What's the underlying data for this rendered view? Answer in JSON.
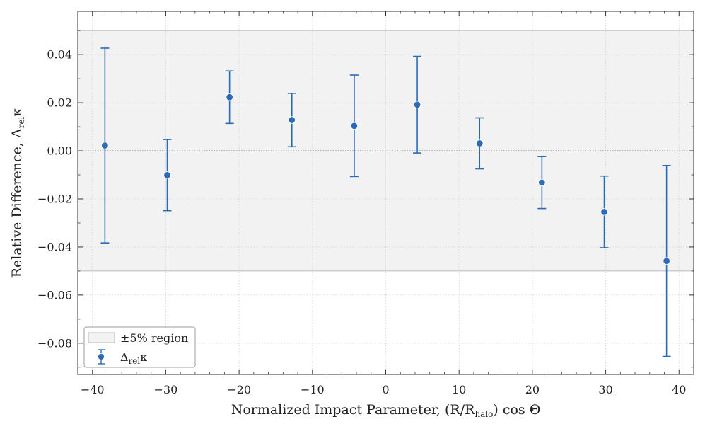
{
  "chart_data": {
    "type": "scatter",
    "title": "",
    "xlabel": {
      "text": "Normalized Impact Parameter, (R/R",
      "subscript": "halo",
      "suffix": ") cos Θ"
    },
    "ylabel": {
      "text": "Relative Difference, Δ",
      "subscript": "rel",
      "suffix": "κ"
    },
    "xlim": [
      -42,
      42
    ],
    "ylim": [
      -0.093,
      0.058
    ],
    "xticks": [
      -40,
      -30,
      -20,
      -10,
      0,
      10,
      20,
      30,
      40
    ],
    "xtick_labels": [
      "−40",
      "−30",
      "−20",
      "−10",
      "0",
      "10",
      "20",
      "30",
      "40"
    ],
    "yticks": [
      -0.08,
      -0.06,
      -0.04,
      -0.02,
      0.0,
      0.02,
      0.04
    ],
    "ytick_labels": [
      "−0.08",
      "−0.06",
      "−0.04",
      "−0.02",
      "0.00",
      "0.02",
      "0.04"
    ],
    "grid": true,
    "band": {
      "lower": -0.05,
      "upper": 0.05,
      "label": "±5% region",
      "color": "#f2f2f2",
      "edge": "#bbbbbb"
    },
    "zero_line": 0.0,
    "series": [
      {
        "name": "Δrelκ",
        "legend_main": "Δ",
        "legend_sub": "rel",
        "legend_suffix": "κ",
        "color": "#2a6ab7",
        "x": [
          -38.3,
          -29.8,
          -21.3,
          -12.8,
          -4.3,
          4.3,
          12.8,
          21.3,
          29.8,
          38.3
        ],
        "y": [
          0.0022,
          -0.0101,
          0.0223,
          0.0128,
          0.0104,
          0.0192,
          0.0031,
          -0.0132,
          -0.0254,
          -0.0458
        ],
        "yerr": [
          0.0405,
          0.0148,
          0.0109,
          0.0111,
          0.0211,
          0.0201,
          0.0106,
          0.0108,
          0.0149,
          0.0397
        ]
      }
    ],
    "legend_position": "lower-left"
  }
}
